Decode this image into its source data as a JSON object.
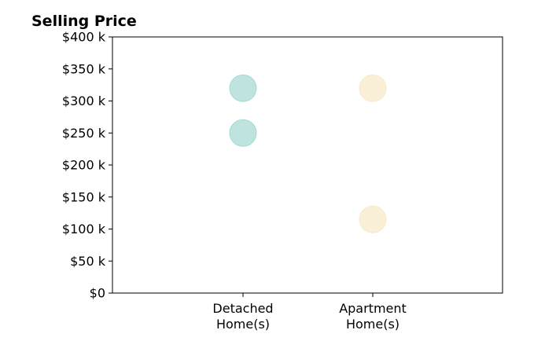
{
  "chart_data": {
    "type": "scatter",
    "title": "Selling Price",
    "xlabel": "",
    "ylabel": "",
    "categories": [
      [
        "Detached",
        "Home(s)"
      ],
      [
        "Apartment",
        "Home(s)"
      ]
    ],
    "ylim": [
      0,
      400
    ],
    "yticks": [
      {
        "value": 0,
        "label": "$0"
      },
      {
        "value": 50,
        "label": "$50 k"
      },
      {
        "value": 100,
        "label": "$100 k"
      },
      {
        "value": 150,
        "label": "$150 k"
      },
      {
        "value": 200,
        "label": "$200 k"
      },
      {
        "value": 250,
        "label": "$250 k"
      },
      {
        "value": 300,
        "label": "$300 k"
      },
      {
        "value": 350,
        "label": "$350 k"
      },
      {
        "value": 400,
        "label": "$400 k"
      }
    ],
    "grid": false,
    "legend": "none",
    "series": [
      {
        "category_index": 0,
        "values": [
          320,
          250
        ],
        "color": "#7fc9c2"
      },
      {
        "category_index": 1,
        "values": [
          320,
          115
        ],
        "color": "#f5dfb0"
      }
    ]
  }
}
